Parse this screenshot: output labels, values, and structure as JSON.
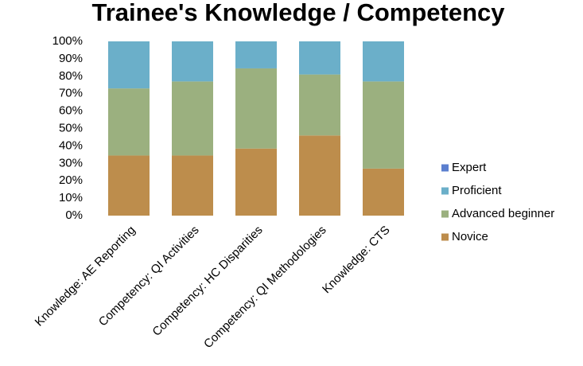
{
  "chart_data": {
    "type": "stacked_bar",
    "title": "Trainee's Knowledge / Competency",
    "categories": [
      "Knowledge: AE Reporting",
      "Competency: QI Activities",
      "Competency: HC Disparities",
      "Competency: QI Methodologies",
      "Knowledge: CTS"
    ],
    "series": [
      {
        "name": "Novice",
        "color": "#bd8d4c",
        "values": [
          34.5,
          34.5,
          38.5,
          46,
          27
        ]
      },
      {
        "name": "Advanced beginner",
        "color": "#9bb07f",
        "values": [
          38.5,
          42.5,
          46,
          35,
          50
        ]
      },
      {
        "name": "Proficient",
        "color": "#6bafc9",
        "values": [
          27,
          23,
          15.5,
          19,
          23
        ]
      },
      {
        "name": "Expert",
        "color": "#5b7fcf",
        "values": [
          0,
          0,
          0,
          0,
          0
        ]
      }
    ],
    "ylim": [
      0,
      100
    ],
    "yticks": [
      {
        "value": 0,
        "label": "0%"
      },
      {
        "value": 10,
        "label": "10%"
      },
      {
        "value": 20,
        "label": "20%"
      },
      {
        "value": 30,
        "label": "30%"
      },
      {
        "value": 40,
        "label": "40%"
      },
      {
        "value": 50,
        "label": "50%"
      },
      {
        "value": 60,
        "label": "60%"
      },
      {
        "value": 70,
        "label": "70%"
      },
      {
        "value": 80,
        "label": "80%"
      },
      {
        "value": 90,
        "label": "90%"
      },
      {
        "value": 100,
        "label": "100%"
      }
    ],
    "grid": false,
    "legend": "right"
  }
}
